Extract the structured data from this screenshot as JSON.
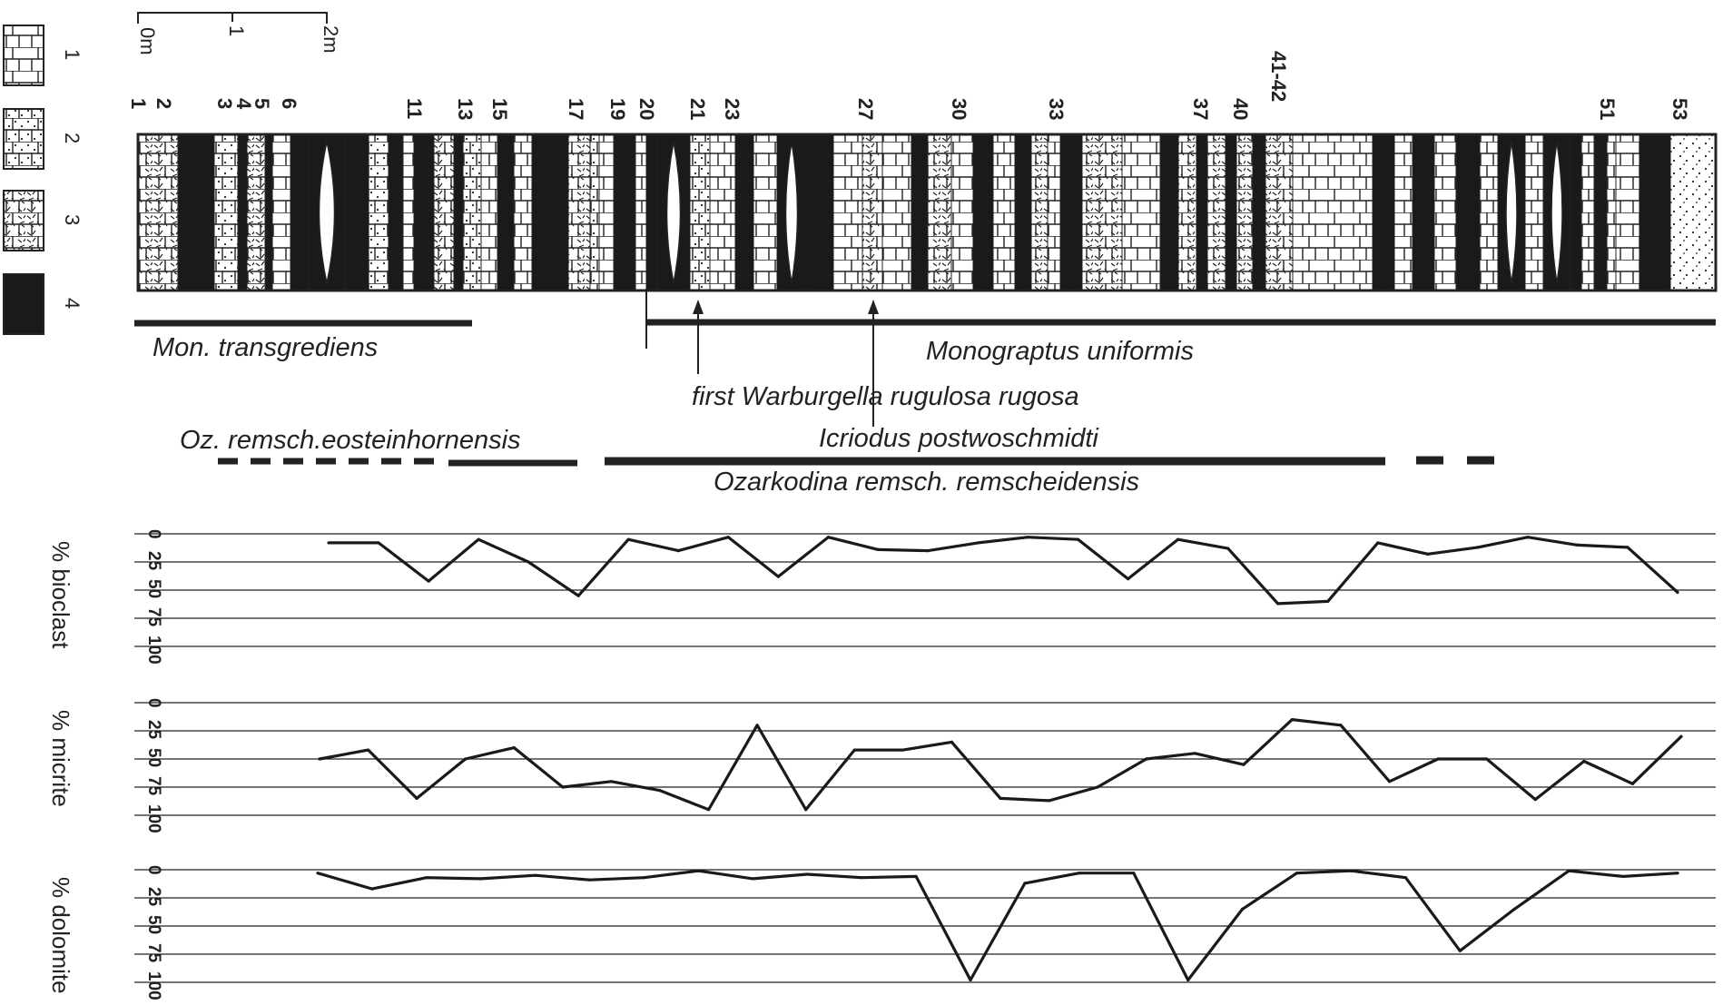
{
  "scale": {
    "labels": [
      "0m",
      "1",
      "2m"
    ]
  },
  "legend": [
    {
      "number": "1",
      "pattern": "limestone"
    },
    {
      "number": "2",
      "pattern": "sandy-limestone"
    },
    {
      "number": "3",
      "pattern": "bioclastic-limestone"
    },
    {
      "number": "4",
      "pattern": "shale"
    }
  ],
  "bed_numbers": [
    "1",
    "2",
    "3",
    "4",
    "5",
    "6",
    "11",
    "13",
    "15",
    "17",
    "19",
    "20",
    "21",
    "23",
    "27",
    "30",
    "33",
    "37",
    "40",
    "41-42",
    "51",
    "53"
  ],
  "zones": {
    "mon_transgrediens": "Mon. transgrediens",
    "monograptus_uniformis": "Monograptus uniformis",
    "warburgella": "first  Warburgella  rugulosa rugosa",
    "oz_eosteinhornensis": "Oz. remsch.eosteinhornensis",
    "icriodus": "Icriodus  postwoschmidti",
    "ozarkodina": "Ozarkodina remsch. remscheidensis"
  },
  "axis_ticks": [
    "0",
    "25",
    "50",
    "75",
    "100"
  ],
  "chart_data": [
    {
      "type": "line",
      "title": "",
      "ylabel": "% bioclast",
      "ylim": [
        0,
        100
      ],
      "y_inverted": true,
      "x_axis": "position along section (bed column)",
      "grid": true,
      "values": [
        8,
        8,
        42,
        5,
        25,
        55,
        5,
        15,
        3,
        38,
        3,
        14,
        15,
        8,
        3,
        5,
        40,
        5,
        13,
        62,
        60,
        8,
        18,
        12,
        3,
        10,
        12,
        52
      ]
    },
    {
      "type": "line",
      "title": "",
      "ylabel": "% micrite",
      "ylim": [
        0,
        100
      ],
      "y_inverted": true,
      "x_axis": "position along section (bed column)",
      "grid": true,
      "values": [
        50,
        42,
        85,
        50,
        40,
        75,
        70,
        78,
        95,
        20,
        95,
        42,
        42,
        35,
        85,
        87,
        75,
        50,
        45,
        55,
        15,
        20,
        70,
        50,
        50,
        86,
        52,
        72,
        30
      ]
    },
    {
      "type": "line",
      "title": "",
      "ylabel": "% dolomite",
      "ylim": [
        0,
        100
      ],
      "y_inverted": true,
      "x_axis": "position along section (bed column)",
      "grid": true,
      "values": [
        3,
        17,
        7,
        8,
        5,
        9,
        7,
        1,
        8,
        4,
        7,
        6,
        98,
        12,
        3,
        3,
        98,
        35,
        3,
        1,
        7,
        72,
        35,
        1,
        6,
        3
      ]
    }
  ]
}
